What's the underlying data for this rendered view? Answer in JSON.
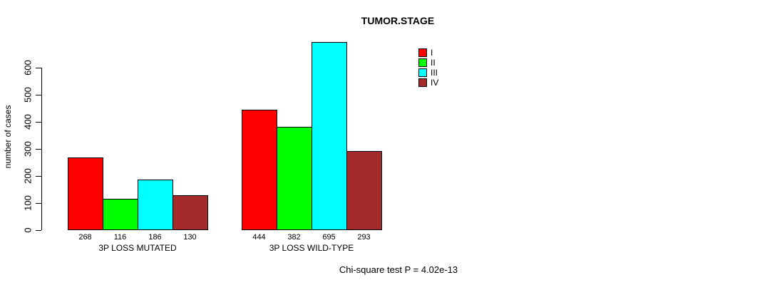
{
  "chart_data": {
    "type": "bar",
    "title": "TUMOR.STAGE",
    "ylabel": "number of cases",
    "xlabel": "",
    "categories": [
      "3P LOSS MUTATED",
      "3P LOSS WILD-TYPE"
    ],
    "series": [
      {
        "name": "I",
        "color": "#ff0000",
        "values": [
          268,
          444
        ]
      },
      {
        "name": "II",
        "color": "#00ff00",
        "values": [
          116,
          382
        ]
      },
      {
        "name": "III",
        "color": "#00ffff",
        "values": [
          186,
          695
        ]
      },
      {
        "name": "IV",
        "color": "#a52a2a",
        "values": [
          130,
          293
        ]
      }
    ],
    "bar_value_labels": [
      [
        "268",
        "116",
        "186",
        "130"
      ],
      [
        "444",
        "382",
        "695",
        "293"
      ]
    ],
    "y_ticks": [
      0,
      100,
      200,
      300,
      400,
      500,
      600
    ],
    "ylim": [
      0,
      600
    ],
    "grid": false,
    "legend_position": "top-right",
    "legend_border": false,
    "annotation": "Chi-square test P = 4.02e-13",
    "axis_color": "#000000",
    "text_color": "#000000",
    "background_color": "#ffffff"
  }
}
